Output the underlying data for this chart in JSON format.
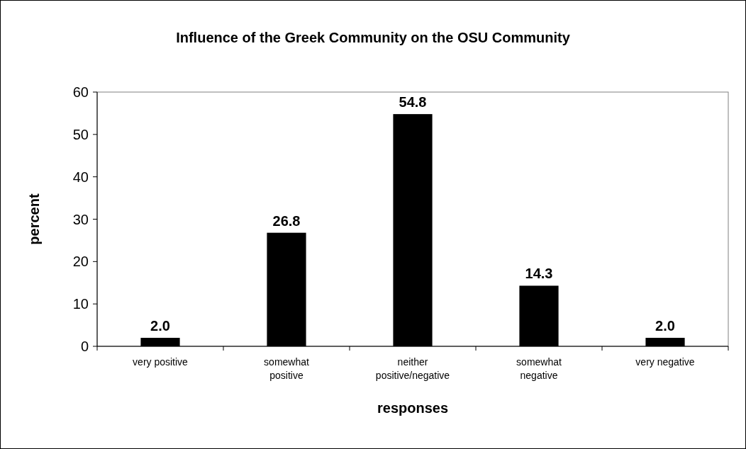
{
  "chart_data": {
    "type": "bar",
    "title": "Influence of the Greek Community on the OSU Community",
    "xlabel": "responses",
    "ylabel": "percent",
    "categories": [
      "very positive",
      "somewhat positive",
      "neither positive/negative",
      "somewhat negative",
      "very negative"
    ],
    "values": [
      2.0,
      26.8,
      54.8,
      14.3,
      2.0
    ],
    "value_labels": [
      "2.0",
      "26.8",
      "54.8",
      "14.3",
      "2.0"
    ],
    "color": "#000000",
    "ylim": [
      0,
      60
    ],
    "yticks": [
      0,
      10,
      20,
      30,
      40,
      50,
      60
    ],
    "grid": false
  }
}
